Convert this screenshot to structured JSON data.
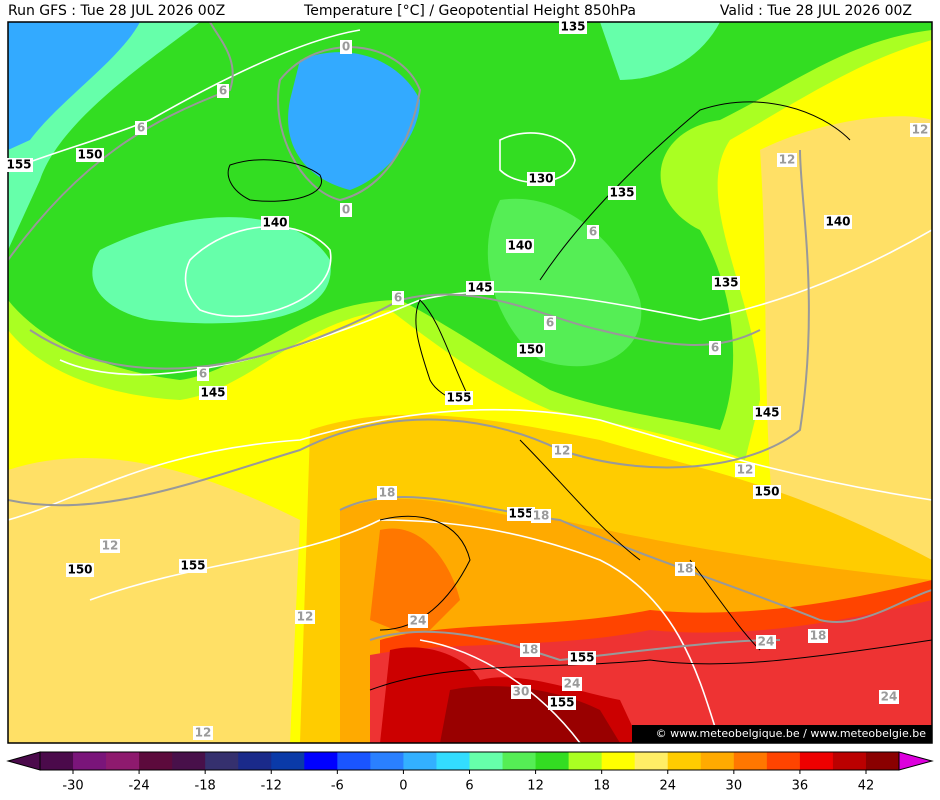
{
  "header": {
    "run": "Run GFS : Tue 28 JUL 2026 00Z",
    "title": "Temperature [°C] / Geopotential Height 850hPa",
    "valid": "Valid : Tue 28 JUL 2026 00Z"
  },
  "height_labels": [
    "155",
    "150",
    "140",
    "130",
    "135",
    "140",
    "145",
    "135",
    "140",
    "150",
    "145",
    "155",
    "145",
    "150",
    "155",
    "150",
    "155",
    "155",
    "155",
    "135"
  ],
  "temperature_labels": [
    "0",
    "0",
    "6",
    "6",
    "6",
    "6",
    "6",
    "6",
    "6",
    "12",
    "12",
    "12",
    "12",
    "12",
    "12",
    "12",
    "18",
    "18",
    "18",
    "18",
    "18",
    "24",
    "24",
    "24",
    "24",
    "30"
  ],
  "colorbar": {
    "colors": [
      "#4b0a4b",
      "#7a157a",
      "#8e1a6e",
      "#5c0a3c",
      "#48104a",
      "#35306e",
      "#1a2a8a",
      "#0a3aa8",
      "#0000ff",
      "#1a55ff",
      "#2a80ff",
      "#33b0ff",
      "#33ddff",
      "#66ffaa",
      "#55ee55",
      "#33dd22",
      "#aaff22",
      "#ffff00",
      "#ffee66",
      "#ffcc00",
      "#ffaa00",
      "#ff7700",
      "#ff4400",
      "#ee0000",
      "#bb0000",
      "#8a0000"
    ],
    "ticks": [
      -30,
      -24,
      -18,
      -12,
      -6,
      0,
      6,
      12,
      18,
      24,
      30,
      36,
      42
    ]
  },
  "watermark": "© www.meteobelgique.be / www.meteobelgie.be"
}
